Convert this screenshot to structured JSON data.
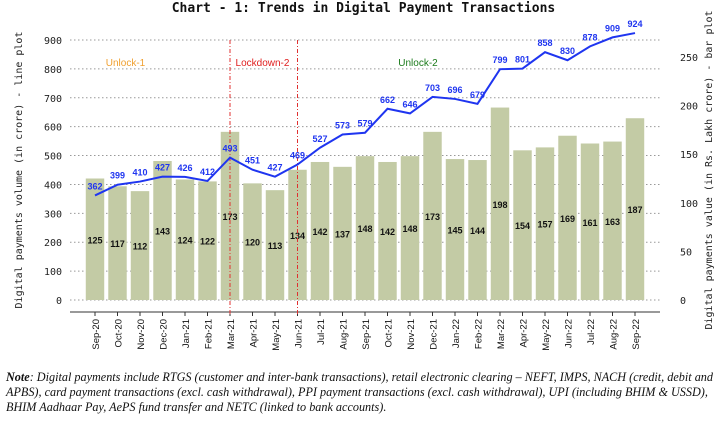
{
  "chart_data": {
    "type": "bar+line",
    "title": "Chart - 1: Trends in Digital Payment Transactions",
    "categories": [
      "Sep-20",
      "Oct-20",
      "Nov-20",
      "Dec-20",
      "Jan-21",
      "Feb-21",
      "Mar-21",
      "Apr-21",
      "May-21",
      "Jun-21",
      "Jul-21",
      "Aug-21",
      "Sep-21",
      "Oct-21",
      "Nov-21",
      "Dec-21",
      "Jan-22",
      "Feb-22",
      "Mar-22",
      "Apr-22",
      "May-22",
      "Jun-22",
      "Jul-22",
      "Aug-22",
      "Sep-22"
    ],
    "series": [
      {
        "name": "Digital payments volume (in crore)",
        "type": "line",
        "axis": "left",
        "color": "#1f35f0",
        "values": [
          362,
          399,
          410,
          427,
          426,
          412,
          493,
          451,
          427,
          469,
          527,
          573,
          579,
          662,
          646,
          703,
          696,
          679,
          799,
          801,
          858,
          830,
          878,
          909,
          924
        ]
      },
      {
        "name": "Digital payments value (in Rs. Lakh crore)",
        "type": "bar",
        "axis": "right",
        "color": "#c3cba5",
        "values": [
          125,
          117,
          112,
          143,
          124,
          122,
          173,
          120,
          113,
          134,
          142,
          137,
          148,
          142,
          148,
          173,
          145,
          144,
          198,
          154,
          157,
          169,
          161,
          163,
          187
        ]
      }
    ],
    "ylabel": "Digital payments volume (in crore) - line plot",
    "y2label": "Digital payments value (in Rs. Lakh crore) - bar plot",
    "ylim": [
      0,
      900
    ],
    "yticks": [
      0,
      100,
      200,
      300,
      400,
      500,
      600,
      700,
      800,
      900
    ],
    "y2ticks": [
      0,
      50,
      100,
      150,
      200,
      250
    ],
    "grid": true,
    "vlines": [
      "Mar-21",
      "Jun-21"
    ],
    "annotations": [
      {
        "text": "Unlock-1",
        "color": "#f0a030",
        "at": "Oct-20"
      },
      {
        "text": "Lockdown-2",
        "color": "#e02020",
        "at": "Apr-21"
      },
      {
        "text": "Unlock-2",
        "color": "#1a7a1a",
        "at": "Nov-21"
      }
    ]
  },
  "note": {
    "label": "Note",
    "text": ": Digital payments include RTGS (customer and inter-bank transactions), retail electronic clearing – NEFT, IMPS, NACH (credit, debit and APBS), card payment transactions (excl. cash withdrawal), PPI payment transactions (excl. cash withdrawal), UPI (including BHIM & USSD), BHIM Aadhaar Pay, AePS fund transfer and NETC (linked to bank accounts)."
  }
}
